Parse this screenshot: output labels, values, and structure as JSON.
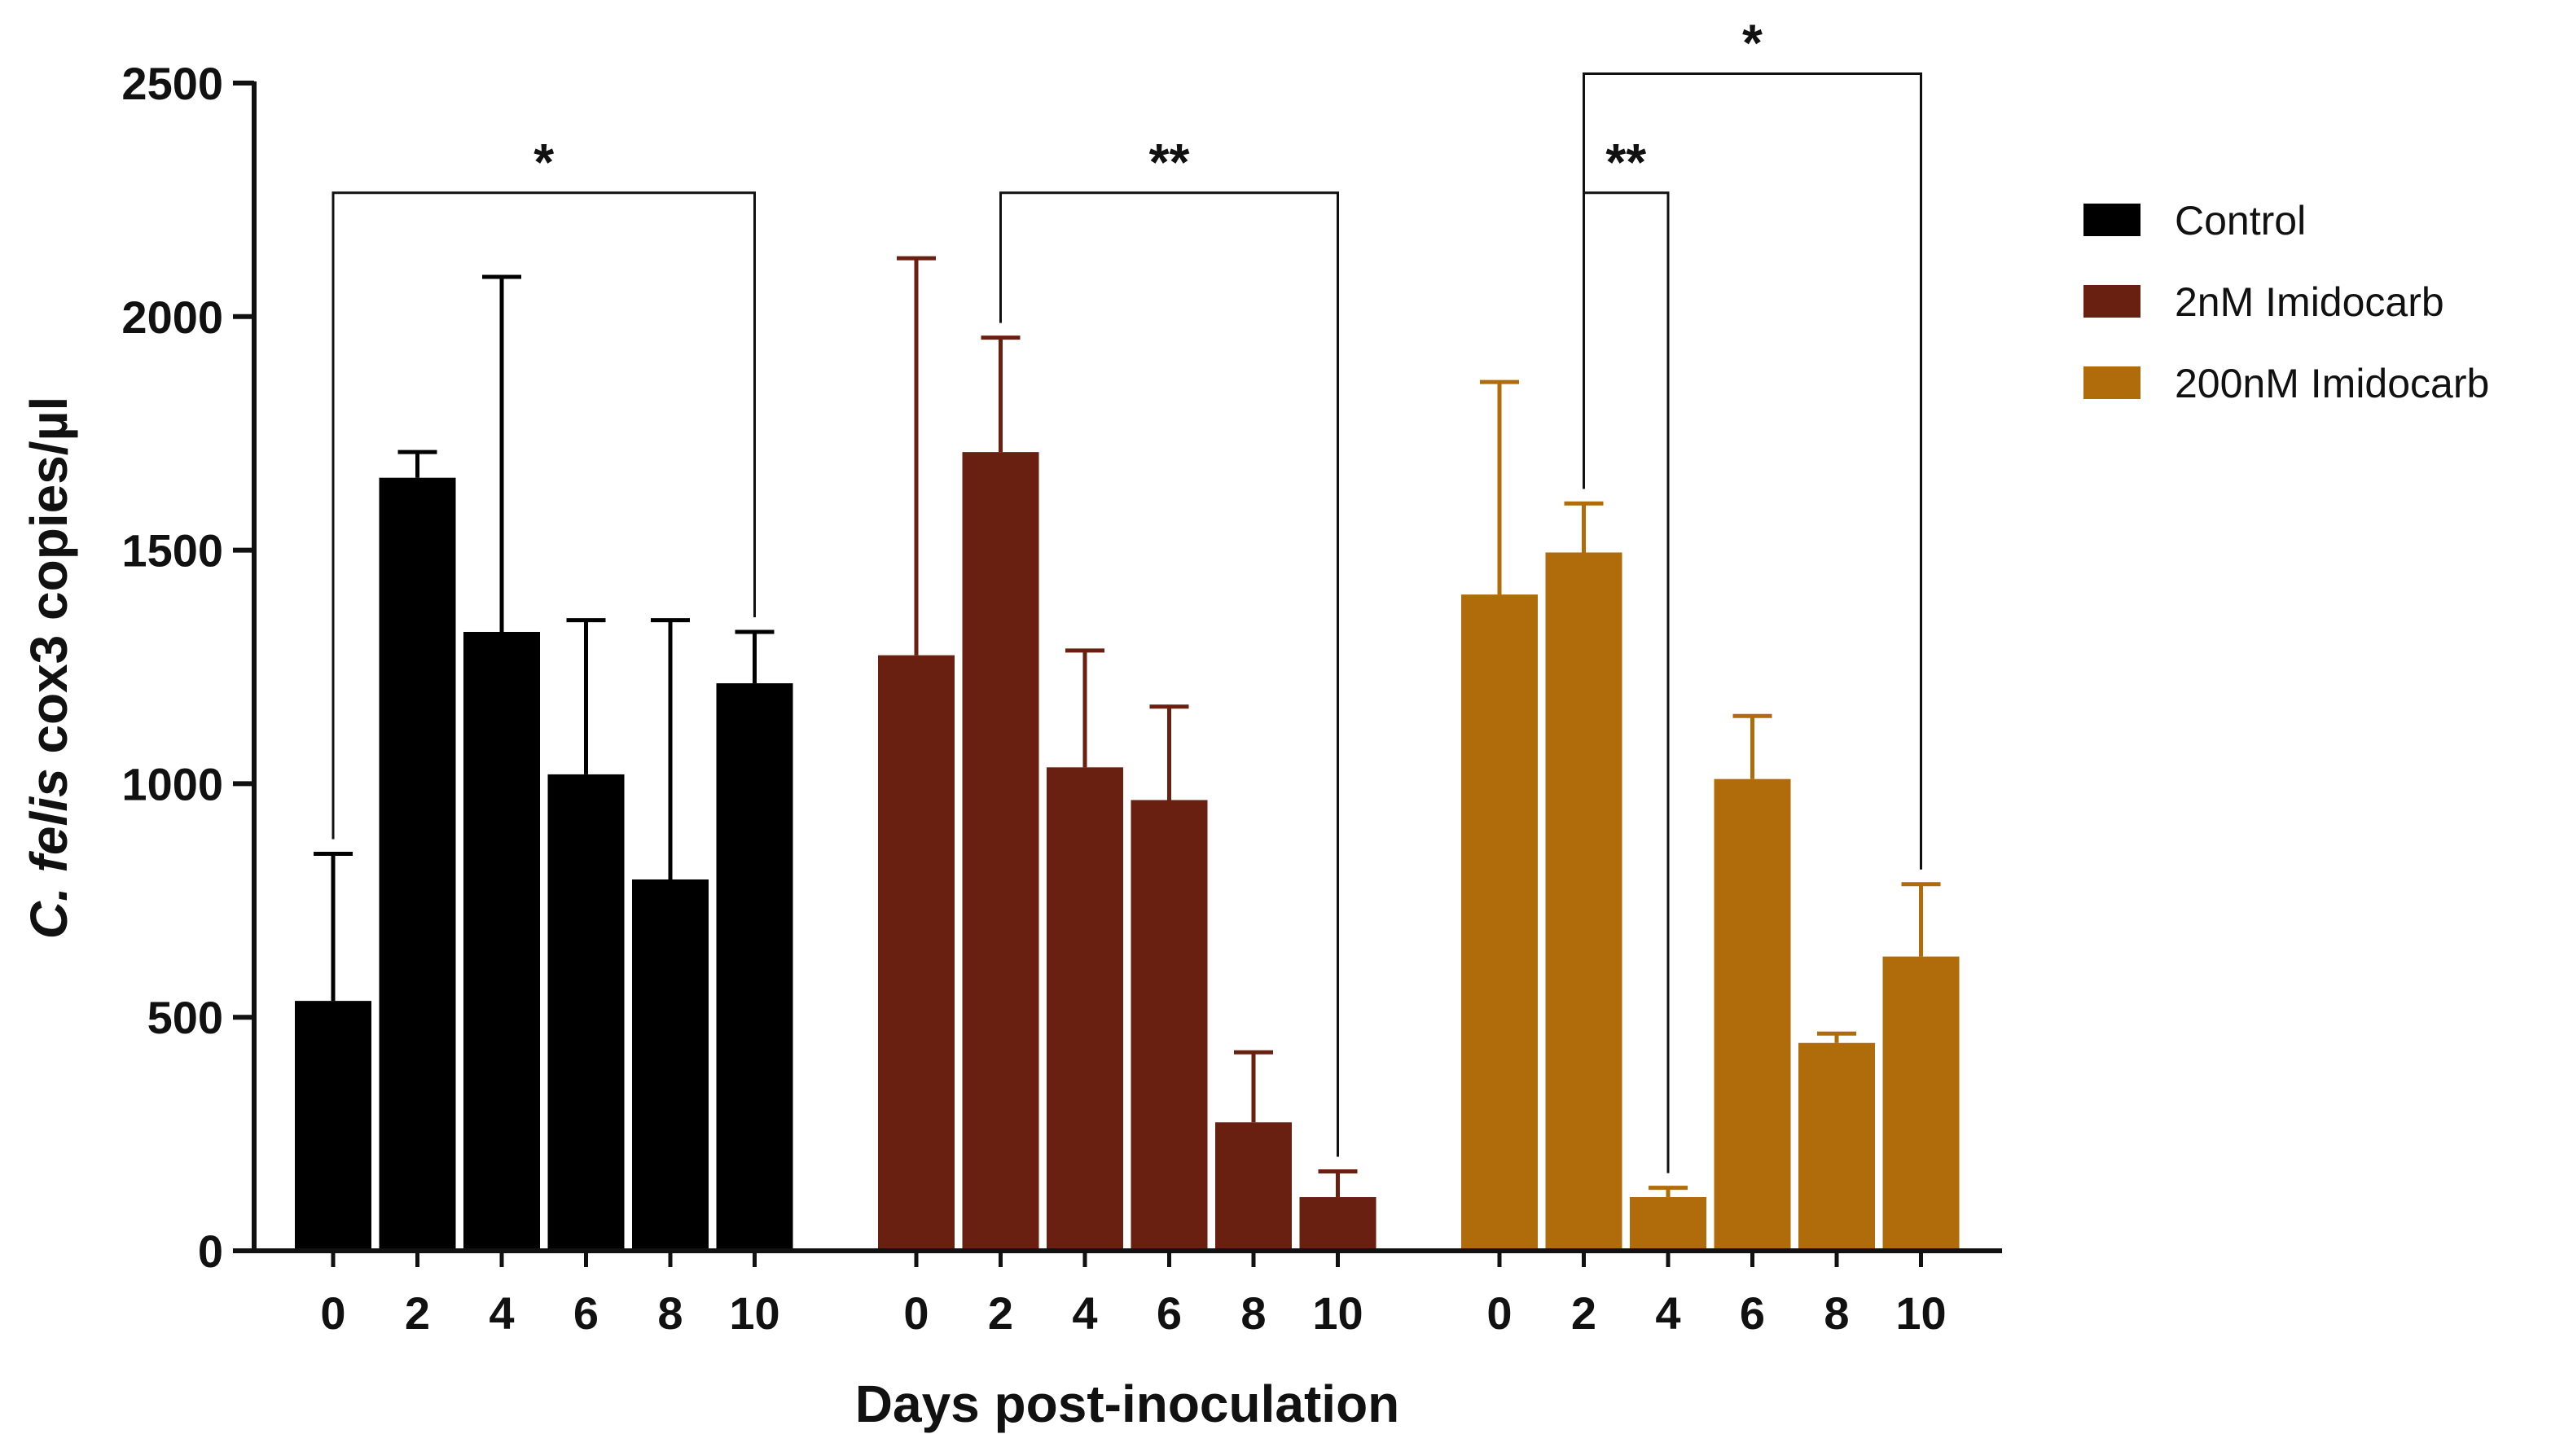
{
  "chart_data": {
    "type": "bar",
    "title": "",
    "xlabel": "Days post-inoculation",
    "ylabel_italic": "C. felis",
    "ylabel_rest": " cox3 copies/µl",
    "ylim": [
      0,
      2500
    ],
    "yticks": [
      0,
      500,
      1000,
      1500,
      2000,
      2500
    ],
    "categories": [
      "0",
      "2",
      "4",
      "6",
      "8",
      "10"
    ],
    "series": [
      {
        "name": "Control",
        "color": "#000000",
        "errcolor": "#000000",
        "values": [
          535,
          1655,
          1325,
          1020,
          795,
          1215
        ],
        "errors": [
          315,
          55,
          760,
          330,
          555,
          110
        ]
      },
      {
        "name": "2nM Imidocarb",
        "color": "#6a2010",
        "errcolor": "#6a2010",
        "values": [
          1275,
          1710,
          1035,
          965,
          275,
          115
        ],
        "errors": [
          850,
          245,
          250,
          200,
          150,
          55
        ]
      },
      {
        "name": "200nM Imidocarb",
        "color": "#b06c0a",
        "errcolor": "#b06c0a",
        "values": [
          1405,
          1495,
          115,
          1010,
          445,
          630
        ],
        "errors": [
          455,
          105,
          20,
          135,
          20,
          155
        ]
      }
    ],
    "legend_position": "right",
    "significance": [
      {
        "group": 0,
        "from": 0,
        "to": 5,
        "level": 2265,
        "label": "*"
      },
      {
        "group": 1,
        "from": 1,
        "to": 5,
        "level": 2265,
        "label": "**"
      },
      {
        "group": 2,
        "from": 1,
        "to": 2,
        "level": 2265,
        "label": "**"
      },
      {
        "group": 2,
        "from": 1,
        "to": 5,
        "level": 2520,
        "label": "*"
      }
    ]
  }
}
